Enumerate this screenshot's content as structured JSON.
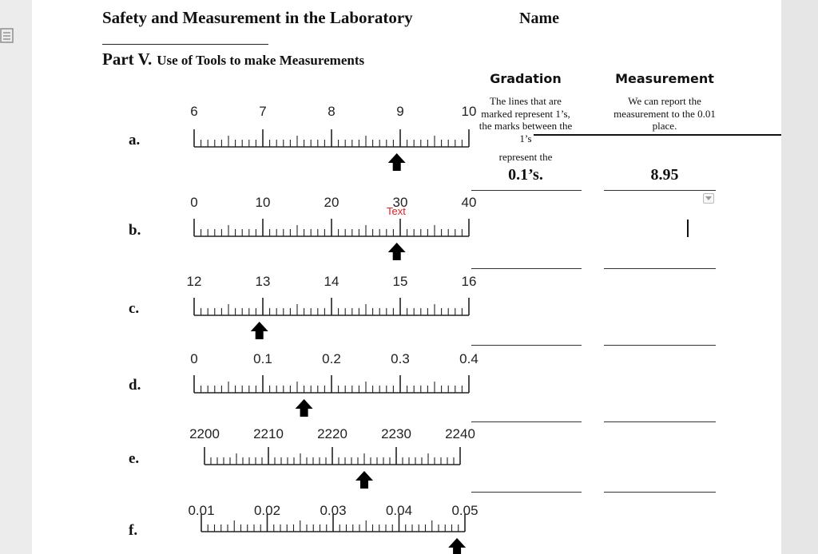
{
  "header": {
    "title": "Safety and Measurement in the Laboratory",
    "name_label": "Name"
  },
  "part": {
    "number": "Part V.",
    "subtitle": "Use of Tools to make Measurements"
  },
  "columns": {
    "gradation": "Gradation",
    "measurement": "Measurement"
  },
  "example": {
    "gradation_note": "The lines that are marked represent 1’s, the marks between the 1’s",
    "gradation_note2": "represent the",
    "gradation_answer": "0.1’s.",
    "measurement_note": "We can report the measurement to the 0.01 place.",
    "measurement_answer": "8.95"
  },
  "annotation_text": "Text",
  "rows": [
    {
      "label": "a.",
      "scale": [
        "6",
        "7",
        "8",
        "9",
        "10"
      ],
      "arrow_value": 8.95
    },
    {
      "label": "b.",
      "scale": [
        "0",
        "10",
        "20",
        "30",
        "40"
      ],
      "arrow_value": 29.5
    },
    {
      "label": "c.",
      "scale": [
        "12",
        "13",
        "14",
        "15",
        "16"
      ],
      "arrow_value": 12.95
    },
    {
      "label": "d.",
      "scale": [
        "0",
        "0.1",
        "0.2",
        "0.3",
        "0.4"
      ],
      "arrow_value": 0.16
    },
    {
      "label": "e.",
      "scale": [
        "2200",
        "2210",
        "2220",
        "2230",
        "2240"
      ],
      "arrow_value": 2225
    },
    {
      "label": "f.",
      "scale": [
        "0.01",
        "0.02",
        "0.03",
        "0.04",
        "0.05"
      ],
      "arrow_value": 0.0488
    }
  ],
  "icons": {
    "outline": "document-outline-icon",
    "dropdown": "dropdown-arrow-icon",
    "pointer": "arrow-up-icon"
  }
}
